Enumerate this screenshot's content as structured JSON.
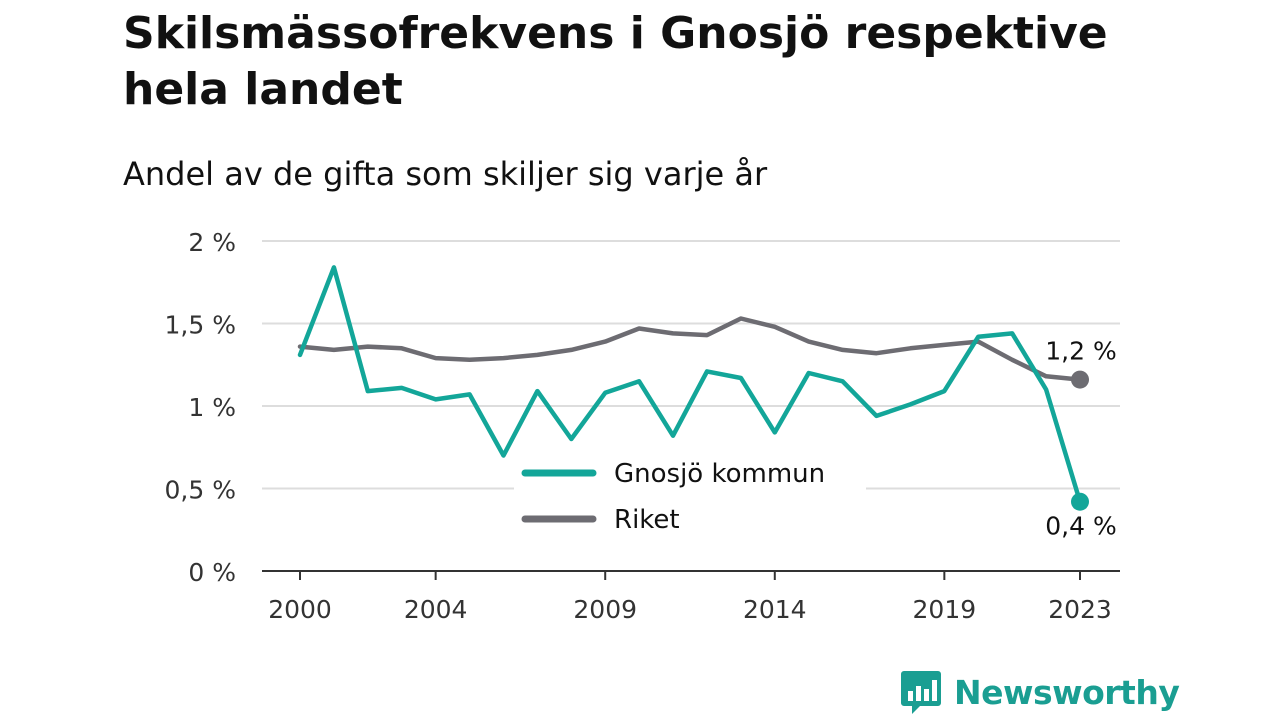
{
  "header": {
    "title": "Skilsmässofrekvens i Gnosjö respektive hela landet",
    "subtitle": "Andel av de gifta som skiljer sig varje år"
  },
  "brand": {
    "name": "Newsworthy",
    "color": "#1a9e92",
    "icon": "newsworthy-chart-bubble-icon"
  },
  "chart_data": {
    "type": "line",
    "title": "Skilsmässofrekvens i Gnosjö respektive hela landet",
    "subtitle": "Andel av de gifta som skiljer sig varje år",
    "x": [
      2000,
      2001,
      2002,
      2003,
      2004,
      2005,
      2006,
      2007,
      2008,
      2009,
      2010,
      2011,
      2012,
      2013,
      2014,
      2015,
      2016,
      2017,
      2018,
      2019,
      2020,
      2021,
      2022,
      2023
    ],
    "x_ticks": [
      2000,
      2004,
      2009,
      2014,
      2019,
      2023
    ],
    "x_tick_labels": [
      "2000",
      "2004",
      "2009",
      "2014",
      "2019",
      "2023"
    ],
    "y_ticks": [
      0,
      0.5,
      1,
      1.5,
      2
    ],
    "y_tick_labels": [
      "0 %",
      "0,5 %",
      "1 %",
      "1,5 %",
      "2 %"
    ],
    "ylim": [
      0,
      2
    ],
    "grid": true,
    "legend_position": "bottom-center",
    "series": [
      {
        "name": "Gnosjö kommun",
        "color": "#13a699",
        "values": [
          1.31,
          1.84,
          1.09,
          1.11,
          1.04,
          1.07,
          0.7,
          1.09,
          0.8,
          1.08,
          1.15,
          0.82,
          1.21,
          1.17,
          0.84,
          1.2,
          1.15,
          0.94,
          1.01,
          1.09,
          1.42,
          1.44,
          1.1,
          0.42
        ],
        "end_label": "0,4 %"
      },
      {
        "name": "Riket",
        "color": "#6d6c72",
        "values": [
          1.36,
          1.34,
          1.36,
          1.35,
          1.29,
          1.28,
          1.29,
          1.31,
          1.34,
          1.39,
          1.47,
          1.44,
          1.43,
          1.53,
          1.48,
          1.39,
          1.34,
          1.32,
          1.35,
          1.37,
          1.39,
          1.28,
          1.18,
          1.16
        ],
        "end_label": "1,2 %"
      }
    ]
  }
}
